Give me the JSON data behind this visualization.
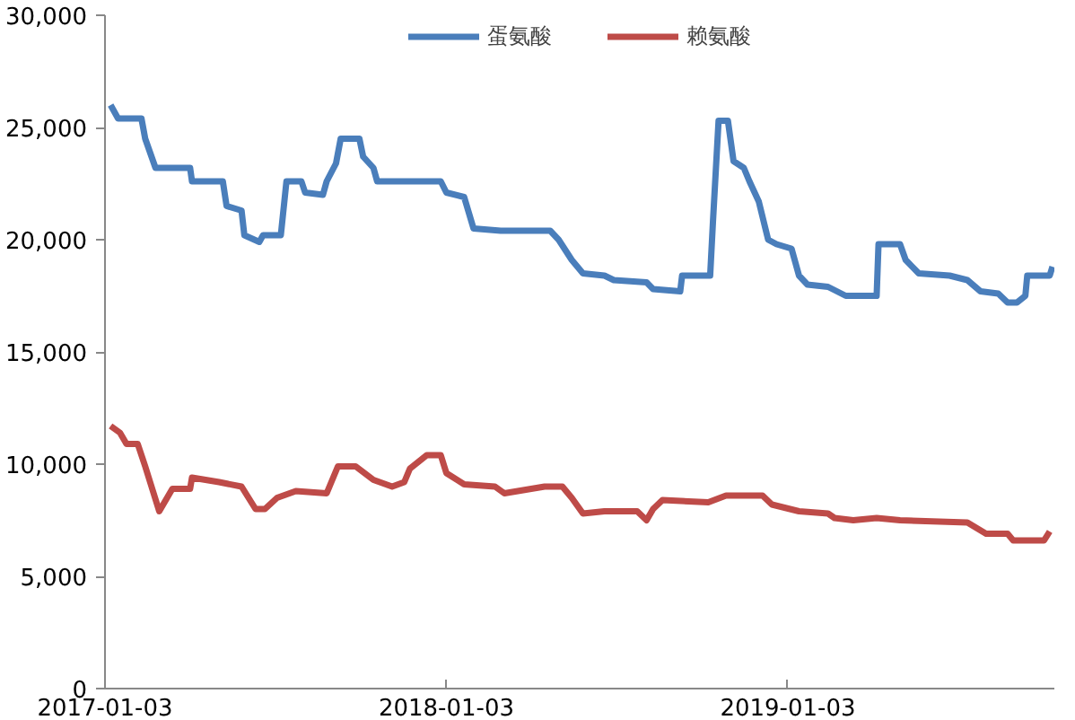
{
  "chart_data": {
    "type": "line",
    "legend": "top",
    "grid": false,
    "xlim": [
      "2017-01-03",
      "2019-10-15"
    ],
    "xticks": [
      "2017-01-03",
      "2018-01-03",
      "2019-01-03"
    ],
    "ylim": [
      0,
      30000
    ],
    "yticks": [
      0,
      {
        "value": 5000,
        "label": "5,000"
      },
      {
        "value": 10000,
        "label": "10,000"
      },
      {
        "value": 15000,
        "label": "15,000"
      },
      {
        "value": 20000,
        "label": "20,000"
      },
      {
        "value": 25000,
        "label": "25,000"
      },
      {
        "value": 30000,
        "label": "30,000"
      }
    ],
    "series": [
      {
        "name": "蛋氨酸",
        "color": "#4a7ebb",
        "x": [
          "2017-01-09",
          "2017-01-17",
          "2017-02-11",
          "2017-02-15",
          "2017-02-26",
          "2017-04-04",
          "2017-04-06",
          "2017-05-09",
          "2017-05-13",
          "2017-05-29",
          "2017-06-01",
          "2017-06-17",
          "2017-06-21",
          "2017-07-10",
          "2017-07-16",
          "2017-08-01",
          "2017-08-05",
          "2017-08-24",
          "2017-08-28",
          "2017-09-07",
          "2017-09-12",
          "2017-10-02",
          "2017-10-06",
          "2017-10-17",
          "2017-10-21",
          "2017-12-28",
          "2018-01-03",
          "2018-01-22",
          "2018-02-01",
          "2018-03-02",
          "2018-04-24",
          "2018-05-03",
          "2018-05-17",
          "2018-05-29",
          "2018-06-21",
          "2018-07-01",
          "2018-08-05",
          "2018-08-12",
          "2018-09-10",
          "2018-09-12",
          "2018-10-12",
          "2018-10-15",
          "2018-10-21",
          "2018-10-31",
          "2018-11-06",
          "2018-11-17",
          "2018-11-23",
          "2018-12-03",
          "2018-12-13",
          "2018-12-22",
          "2019-01-07",
          "2019-01-15",
          "2019-01-24",
          "2019-02-15",
          "2019-03-06",
          "2019-04-08",
          "2019-04-10",
          "2019-05-03",
          "2019-05-09",
          "2019-05-23",
          "2019-06-25",
          "2019-07-14",
          "2019-07-28",
          "2019-08-16",
          "2019-08-26",
          "2019-09-05",
          "2019-09-14",
          "2019-09-16",
          "2019-10-10",
          "2019-10-13"
        ],
        "values": [
          26000,
          25400,
          25400,
          24500,
          23200,
          23200,
          22600,
          22600,
          21500,
          21300,
          20200,
          19900,
          20200,
          20200,
          22600,
          22600,
          22100,
          22000,
          22600,
          23400,
          24500,
          24500,
          23700,
          23200,
          22600,
          22600,
          22100,
          21900,
          20500,
          20400,
          20400,
          20000,
          19100,
          18500,
          18400,
          18200,
          18100,
          17800,
          17700,
          18400,
          18400,
          20800,
          25300,
          25300,
          23500,
          23200,
          22600,
          21700,
          20000,
          19800,
          19600,
          18400,
          18000,
          17900,
          17500,
          17500,
          19800,
          19800,
          19100,
          18500,
          18400,
          18200,
          17700,
          17600,
          17200,
          17200,
          17500,
          18400,
          18400,
          18800
        ]
      },
      {
        "name": "赖氨酸",
        "color": "#be4b48",
        "x": [
          "2017-01-09",
          "2017-01-19",
          "2017-01-26",
          "2017-02-07",
          "2017-02-15",
          "2017-03-02",
          "2017-03-16",
          "2017-04-04",
          "2017-04-06",
          "2017-05-05",
          "2017-05-29",
          "2017-06-13",
          "2017-06-23",
          "2017-07-06",
          "2017-07-26",
          "2017-08-28",
          "2017-09-09",
          "2017-09-28",
          "2017-10-17",
          "2017-11-06",
          "2017-11-19",
          "2017-11-25",
          "2017-12-13",
          "2017-12-28",
          "2018-01-03",
          "2018-01-22",
          "2018-02-24",
          "2018-03-06",
          "2018-04-18",
          "2018-05-07",
          "2018-05-17",
          "2018-05-29",
          "2018-06-21",
          "2018-07-26",
          "2018-08-05",
          "2018-08-12",
          "2018-08-22",
          "2018-10-10",
          "2018-10-29",
          "2018-12-07",
          "2018-12-17",
          "2019-01-15",
          "2019-02-15",
          "2019-02-22",
          "2019-03-14",
          "2019-04-08",
          "2019-05-03",
          "2019-07-14",
          "2019-08-03",
          "2019-08-26",
          "2019-09-01",
          "2019-10-04",
          "2019-10-10"
        ],
        "values": [
          11700,
          11400,
          10900,
          10900,
          9900,
          7900,
          8900,
          8900,
          9400,
          9200,
          9000,
          8000,
          8000,
          8500,
          8800,
          8700,
          9900,
          9900,
          9300,
          9000,
          9200,
          9800,
          10400,
          10400,
          9600,
          9100,
          9000,
          8700,
          9000,
          9000,
          8500,
          7800,
          7900,
          7900,
          7500,
          8000,
          8400,
          8300,
          8600,
          8600,
          8200,
          7900,
          7800,
          7600,
          7500,
          7600,
          7500,
          7400,
          6900,
          6900,
          6600,
          6600,
          7000
        ]
      }
    ]
  }
}
